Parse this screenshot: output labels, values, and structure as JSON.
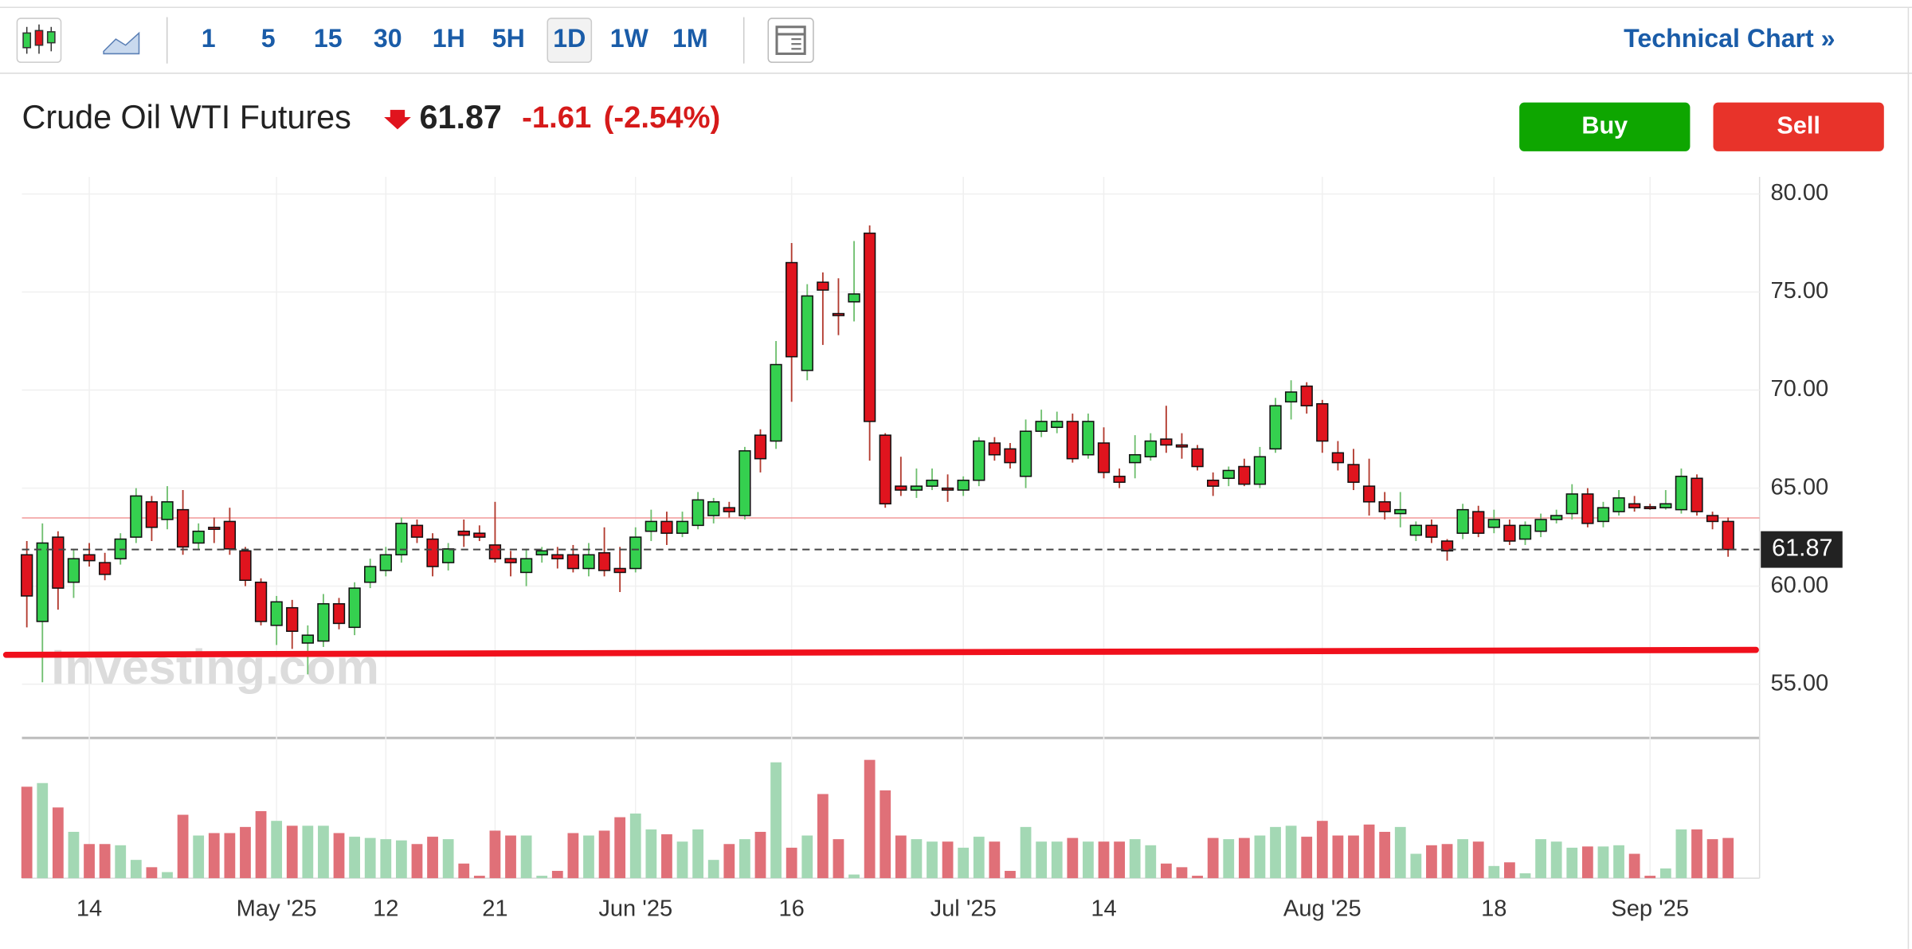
{
  "toolbar": {
    "intervals": [
      "1",
      "5",
      "15",
      "30",
      "1H",
      "5H",
      "1D",
      "1W",
      "1M"
    ],
    "selected": "1D",
    "link": "Technical Chart »"
  },
  "header": {
    "instrument": "Crude Oil WTI Futures",
    "last": 61.87,
    "change": -1.61,
    "change_percent": "(-2.54%)"
  },
  "buttons": [
    "Buy",
    "Sell"
  ],
  "chart_data": {
    "type": "candlestick",
    "watermark": "Investing.com",
    "categories": [
      null,
      null,
      null,
      null,
      "14",
      null,
      null,
      null,
      null,
      null,
      null,
      null,
      null,
      null,
      null,
      null,
      "May '25",
      null,
      null,
      null,
      null,
      null,
      null,
      "12",
      null,
      null,
      null,
      null,
      null,
      null,
      "21",
      null,
      null,
      null,
      null,
      null,
      null,
      null,
      null,
      "Jun '25",
      null,
      null,
      null,
      null,
      null,
      null,
      null,
      null,
      null,
      "16",
      null,
      null,
      null,
      null,
      null,
      null,
      null,
      null,
      null,
      null,
      "Jul '25",
      null,
      null,
      null,
      null,
      null,
      null,
      null,
      null,
      "14",
      null,
      null,
      null,
      null,
      null,
      null,
      null,
      null,
      null,
      null,
      null,
      null,
      null,
      "Aug '25",
      null,
      null,
      null,
      null,
      null,
      null,
      null,
      null,
      null,
      null,
      "18",
      null,
      null,
      null,
      null,
      null,
      null,
      null,
      null,
      null,
      "Sep '25",
      null,
      null,
      null,
      null,
      null
    ],
    "open": [
      61.6,
      58.2,
      62.5,
      60.2,
      61.6,
      61.2,
      61.4,
      62.5,
      64.3,
      63.4,
      63.9,
      62.2,
      63,
      63.3,
      61.8,
      60.2,
      58.0,
      58.9,
      57.1,
      57.2,
      59.1,
      57.9,
      60.2,
      60.8,
      61.6,
      63.1,
      62.4,
      61.2,
      62.8,
      62.7,
      62.1,
      61.4,
      60.7,
      61.6,
      61.6,
      61.6,
      60.9,
      61.7,
      60.9,
      60.9,
      62.8,
      63.3,
      62.7,
      63.1,
      63.6,
      64.0,
      63.6,
      67.7,
      67.4,
      76.5,
      71.0,
      75.5,
      73.9,
      74.5,
      78,
      67.7,
      65.1,
      64.9,
      65.1,
      65.0,
      64.9,
      65.4,
      67.3,
      67.0,
      65.6,
      67.9,
      68.1,
      68.4,
      66.7,
      67.3,
      65.6,
      66.3,
      66.6,
      67.5,
      67.2,
      67.0,
      65.4,
      65.5,
      66.1,
      65.2,
      67.0,
      69.4,
      70.2,
      69.3,
      66.8,
      66.2,
      65.1,
      64.3,
      63.7,
      62.6,
      63.1,
      62.3,
      62.7,
      63.8,
      63.0,
      63.1,
      62.4,
      62.8,
      63.4,
      63.7,
      64.7,
      63.3,
      63.8,
      64.2,
      64.05,
      64.0,
      63.9,
      65.5,
      63.6,
      63.3
    ],
    "high": [
      62.3,
      63.2,
      62.8,
      61.9,
      62.2,
      61.7,
      62.7,
      65,
      64.6,
      65.1,
      64.9,
      63.2,
      63.5,
      64,
      62,
      60.4,
      59.5,
      59.3,
      58,
      59.6,
      59.4,
      60.2,
      61.4,
      62,
      63.5,
      63.4,
      62.7,
      62.2,
      63.4,
      63.1,
      64.3,
      61.8,
      61.9,
      62,
      62,
      62.1,
      62.2,
      63,
      62,
      63,
      63.9,
      63.8,
      63.8,
      64.8,
      64.5,
      64.3,
      67.1,
      68,
      72.5,
      77.5,
      75.4,
      76,
      75.7,
      77.6,
      78.4,
      67.8,
      66.6,
      66,
      66,
      65.7,
      65.6,
      67.6,
      67.6,
      67.3,
      68.5,
      69,
      68.9,
      68.8,
      68.8,
      68.1,
      66,
      67.7,
      67.8,
      69.2,
      67.8,
      67.2,
      65.8,
      66.1,
      66.5,
      67.1,
      69.6,
      70.5,
      70.4,
      69.5,
      67.4,
      67,
      66.5,
      64.8,
      64.8,
      63.3,
      63.4,
      62.4,
      64.2,
      64.1,
      63.9,
      63.4,
      63.3,
      63.7,
      63.9,
      65.2,
      65,
      64.3,
      64.9,
      64.6,
      64.2,
      64.9,
      66,
      65.7,
      63.8,
      63.5
    ],
    "low": [
      57.9,
      55.1,
      58.8,
      59.4,
      61.0,
      60.3,
      61.1,
      62.2,
      62.3,
      62.9,
      61.6,
      61.9,
      62.2,
      61.6,
      60,
      58,
      57,
      56.8,
      55.5,
      56.9,
      57.8,
      57.5,
      59.9,
      60.5,
      61.2,
      62.2,
      60.5,
      60.8,
      62.0,
      62.3,
      61.2,
      60.5,
      60.0,
      61.2,
      60.9,
      60.7,
      60.5,
      60.5,
      59.7,
      60.7,
      62.3,
      62.1,
      62.5,
      62.9,
      63.2,
      63.5,
      63.4,
      65.8,
      67.0,
      69.4,
      70.5,
      72.3,
      72.8,
      73.5,
      66.4,
      64.0,
      64.6,
      64.5,
      64.9,
      64.3,
      64.6,
      65.1,
      66.4,
      66.0,
      65.0,
      67.6,
      67.8,
      66.3,
      66.5,
      65.5,
      65,
      65.5,
      66.4,
      66.8,
      66.5,
      65.9,
      64.6,
      65.1,
      65.1,
      65.0,
      66.8,
      68.5,
      68.8,
      66.8,
      65.9,
      64.9,
      63.6,
      63.4,
      63.0,
      62.3,
      62.2,
      61.3,
      62.4,
      62.5,
      62.7,
      62.1,
      62.1,
      62.5,
      63.2,
      63.4,
      63.0,
      63.0,
      63.6,
      63.8,
      63.9,
      63.9,
      63.7,
      63.6,
      62.9,
      61.5
    ],
    "close": [
      59.5,
      62.2,
      59.9,
      61.4,
      61.3,
      60.6,
      62.4,
      64.6,
      63.0,
      64.3,
      62.0,
      62.8,
      62.9,
      61.9,
      60.3,
      58.2,
      59.2,
      57.7,
      57.5,
      59.1,
      58.1,
      59.9,
      61.0,
      61.6,
      63.2,
      62.5,
      61.0,
      61.9,
      62.6,
      62.5,
      61.4,
      61.2,
      61.4,
      61.8,
      61.4,
      60.9,
      61.6,
      60.8,
      60.7,
      62.5,
      63.3,
      62.7,
      63.3,
      64.4,
      64.3,
      63.8,
      66.9,
      66.5,
      71.3,
      71.7,
      74.8,
      75.1,
      73.8,
      74.9,
      68.4,
      64.2,
      64.9,
      65.1,
      65.4,
      64.9,
      65.4,
      67.4,
      66.7,
      66.3,
      67.9,
      68.4,
      68.4,
      66.5,
      68.4,
      65.8,
      65.3,
      66.7,
      67.4,
      67.2,
      67.1,
      66.1,
      65.1,
      65.9,
      65.2,
      66.6,
      69.2,
      69.9,
      69.2,
      67.4,
      66.3,
      65.3,
      64.3,
      63.8,
      63.9,
      63.1,
      62.5,
      61.8,
      63.9,
      62.7,
      63.4,
      62.3,
      63.1,
      63.4,
      63.6,
      64.7,
      63.2,
      64.0,
      64.5,
      64.0,
      64.0,
      64.2,
      65.6,
      63.8,
      63.3,
      61.87
    ],
    "volume": [
      75,
      78,
      58,
      38,
      28,
      28,
      27,
      15,
      9,
      5,
      52,
      35,
      37,
      37,
      42,
      55,
      47,
      43,
      43,
      43,
      37,
      34,
      33,
      32,
      31,
      28,
      34,
      32,
      12,
      2,
      39,
      35,
      35,
      2,
      6,
      37,
      35,
      39,
      50,
      53,
      40,
      36,
      30,
      40,
      15,
      28,
      32,
      38,
      95,
      25,
      35,
      69,
      32,
      3,
      97,
      72,
      35,
      32,
      30,
      30,
      25,
      34,
      30,
      6,
      42,
      30,
      30,
      33,
      30,
      30,
      30,
      32,
      27,
      12,
      9,
      2,
      33,
      32,
      33,
      35,
      42,
      43,
      34,
      47,
      35,
      35,
      44,
      38,
      42,
      20,
      27,
      28,
      32,
      30,
      10,
      13,
      4,
      32,
      30,
      25,
      26,
      26,
      27,
      20,
      2,
      8,
      40,
      40,
      32,
      33
    ],
    "up_color": "#35d04f",
    "down_color": "#e0141e",
    "up_volume_color": "#a3d8b4",
    "down_volume_color": "#e07078",
    "prev_close": 63.48,
    "trendline": [
      56.5,
      56.75
    ],
    "trendline_color": "#f0101c",
    "ylim": [
      52.26,
      80.87
    ],
    "yticks": [
      {
        "value": 55,
        "label": "55.00"
      },
      {
        "value": 60,
        "label": "60.00"
      },
      {
        "value": 65,
        "label": "65.00"
      },
      {
        "value": 70,
        "label": "70.00"
      },
      {
        "value": 75,
        "label": "75.00"
      },
      {
        "value": 80,
        "label": "80.00"
      }
    ],
    "grid": true
  }
}
